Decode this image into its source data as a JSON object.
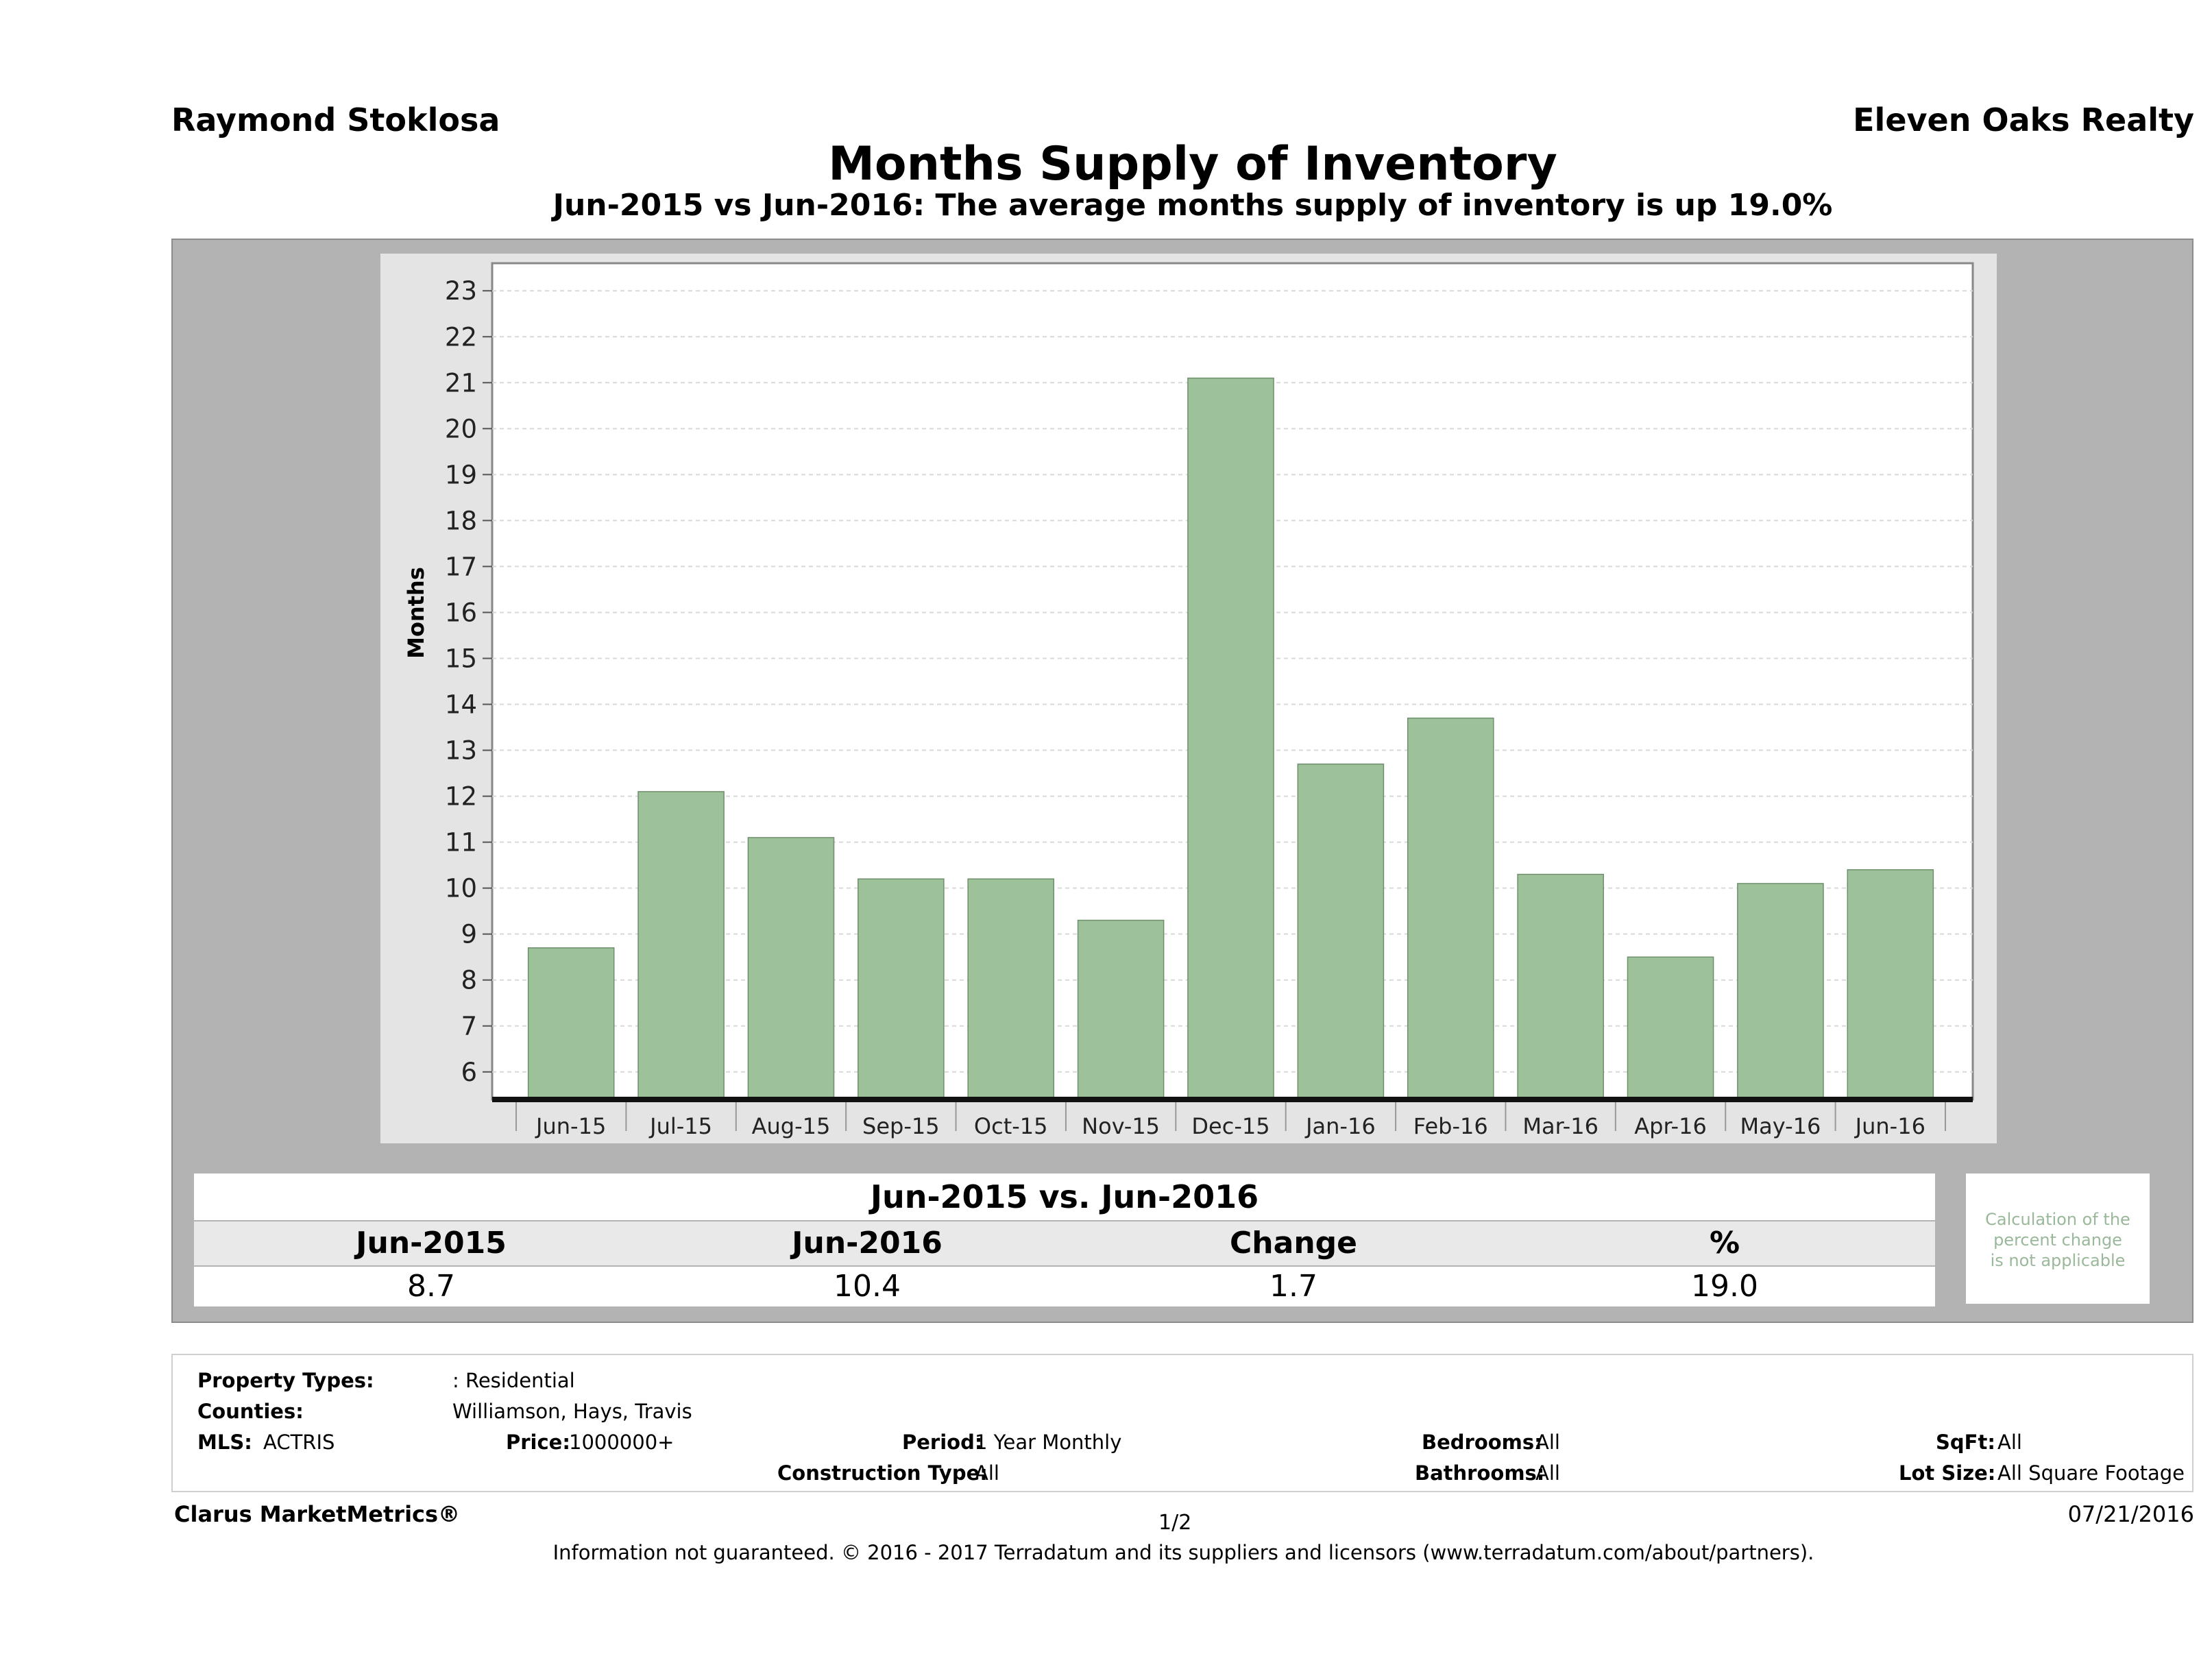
{
  "header": {
    "agent": "Raymond Stoklosa",
    "brokerage": "Eleven Oaks Realty"
  },
  "chart_data": {
    "type": "bar",
    "title": "Months Supply of Inventory",
    "subtitle": "Jun-2015 vs Jun-2016: The average months supply of inventory is up 19.0%",
    "xlabel": "",
    "ylabel": "Months",
    "ylim": [
      5.4,
      23.6
    ],
    "yticks": [
      6,
      7,
      8,
      9,
      10,
      11,
      12,
      13,
      14,
      15,
      16,
      17,
      18,
      19,
      20,
      21,
      22,
      23
    ],
    "grid": true,
    "bar_color": "#9dc29a",
    "categories": [
      "Jun-15",
      "Jul-15",
      "Aug-15",
      "Sep-15",
      "Oct-15",
      "Nov-15",
      "Dec-15",
      "Jan-16",
      "Feb-16",
      "Mar-16",
      "Apr-16",
      "May-16",
      "Jun-16"
    ],
    "values": [
      8.7,
      12.1,
      11.1,
      10.2,
      10.2,
      9.3,
      21.1,
      12.7,
      13.7,
      10.3,
      8.5,
      10.1,
      10.4
    ]
  },
  "comparison": {
    "title": "Jun-2015 vs. Jun-2016",
    "headers": [
      "Jun-2015",
      "Jun-2016",
      "Change",
      "%"
    ],
    "values": [
      "8.7",
      "10.4",
      "1.7",
      "19.0"
    ],
    "note": [
      "Calculation of the",
      "percent change",
      "is not applicable"
    ]
  },
  "params": {
    "property_types_label": "Property Types:",
    "property_types": ": Residential",
    "counties_label": "Counties:",
    "counties": "Williamson, Hays, Travis",
    "mls_label": "MLS:",
    "mls": "ACTRIS",
    "price_label": "Price:",
    "price": "1000000+",
    "period_label": "Period:",
    "period": "1 Year Monthly",
    "construction_label": "Construction Type:",
    "construction": "All",
    "bedrooms_label": "Bedrooms:",
    "bedrooms": "All",
    "bathrooms_label": "Bathrooms:",
    "bathrooms": "All",
    "sqft_label": "SqFt:",
    "sqft": "All",
    "lot_label": "Lot Size:",
    "lot": "All Square Footage"
  },
  "footer": {
    "brand": "Clarus MarketMetrics®",
    "page": "1/2",
    "date": "07/21/2016",
    "disclaimer": "Information not guaranteed. © 2016 - 2017 Terradatum and its suppliers and licensors (www.terradatum.com/about/partners)."
  }
}
